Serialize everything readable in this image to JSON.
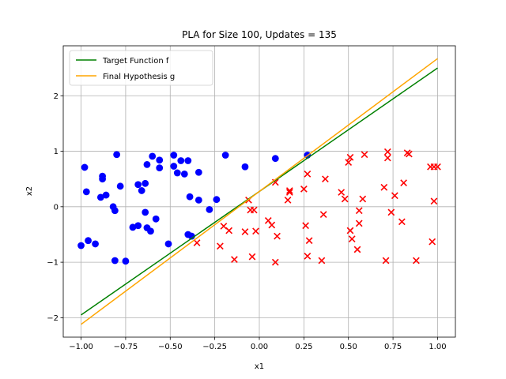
{
  "chart_data": {
    "type": "scatter",
    "title": "PLA for Size 100, Updates = 135",
    "xlabel": "x1",
    "ylabel": "x2",
    "xlim": [
      -1.1,
      1.1
    ],
    "ylim": [
      -2.35,
      2.9
    ],
    "x_ticks": [
      -1.0,
      -0.75,
      -0.5,
      -0.25,
      0.0,
      0.25,
      0.5,
      0.75,
      1.0
    ],
    "x_tick_labels": [
      "−1.00",
      "−0.75",
      "−0.50",
      "−0.25",
      "0.00",
      "0.25",
      "0.50",
      "0.75",
      "1.00"
    ],
    "y_ticks": [
      -2,
      -1,
      0,
      1,
      2
    ],
    "y_tick_labels": [
      "−2",
      "−1",
      "0",
      "1",
      "2"
    ],
    "grid": true,
    "legend_position": "upper-left",
    "lines": [
      {
        "name": "Target Function f",
        "color": "#008000",
        "x": [
          -1.0,
          1.0
        ],
        "y": [
          -1.95,
          2.5
        ]
      },
      {
        "name": "Final Hypothesis g",
        "color": "#ffa500",
        "x": [
          -1.0,
          1.0
        ],
        "y": [
          -2.12,
          2.67
        ]
      }
    ],
    "series": [
      {
        "marker": "circle",
        "color": "#0000ff",
        "points": [
          [
            -1.0,
            -0.7
          ],
          [
            -0.98,
            0.71
          ],
          [
            -0.97,
            0.27
          ],
          [
            -0.96,
            -0.61
          ],
          [
            -0.92,
            -0.67
          ],
          [
            -0.89,
            0.17
          ],
          [
            -0.88,
            0.55
          ],
          [
            -0.88,
            0.5
          ],
          [
            -0.86,
            0.21
          ],
          [
            -0.82,
            0.0
          ],
          [
            -0.81,
            -0.07
          ],
          [
            -0.81,
            -0.97
          ],
          [
            -0.8,
            0.94
          ],
          [
            -0.78,
            0.37
          ],
          [
            -0.75,
            -0.98
          ],
          [
            -0.71,
            -0.37
          ],
          [
            -0.68,
            -0.34
          ],
          [
            -0.68,
            0.4
          ],
          [
            -0.66,
            0.29
          ],
          [
            -0.64,
            0.42
          ],
          [
            -0.64,
            -0.1
          ],
          [
            -0.63,
            0.76
          ],
          [
            -0.63,
            -0.38
          ],
          [
            -0.61,
            -0.44
          ],
          [
            -0.6,
            0.91
          ],
          [
            -0.58,
            -0.22
          ],
          [
            -0.56,
            0.7
          ],
          [
            -0.56,
            0.84
          ],
          [
            -0.51,
            -0.67
          ],
          [
            -0.48,
            0.73
          ],
          [
            -0.48,
            0.93
          ],
          [
            -0.46,
            0.61
          ],
          [
            -0.44,
            0.83
          ],
          [
            -0.42,
            0.59
          ],
          [
            -0.4,
            0.83
          ],
          [
            -0.4,
            -0.5
          ],
          [
            -0.39,
            0.18
          ],
          [
            -0.38,
            -0.53
          ],
          [
            -0.34,
            0.62
          ],
          [
            -0.34,
            0.12
          ],
          [
            -0.28,
            -0.05
          ],
          [
            -0.24,
            0.13
          ],
          [
            -0.19,
            0.93
          ],
          [
            -0.08,
            0.72
          ],
          [
            0.09,
            0.87
          ],
          [
            0.27,
            0.93
          ]
        ]
      },
      {
        "marker": "x",
        "color": "#ff0000",
        "points": [
          [
            -0.35,
            -0.65
          ],
          [
            -0.22,
            -0.71
          ],
          [
            -0.2,
            -0.35
          ],
          [
            -0.17,
            -0.43
          ],
          [
            -0.14,
            -0.95
          ],
          [
            -0.08,
            -0.45
          ],
          [
            -0.06,
            0.12
          ],
          [
            -0.05,
            -0.06
          ],
          [
            -0.04,
            -0.9
          ],
          [
            -0.03,
            -0.06
          ],
          [
            -0.02,
            -0.44
          ],
          [
            0.05,
            -0.25
          ],
          [
            0.07,
            -0.33
          ],
          [
            0.09,
            0.44
          ],
          [
            0.09,
            -1.0
          ],
          [
            0.1,
            -0.53
          ],
          [
            0.16,
            0.12
          ],
          [
            0.17,
            0.29
          ],
          [
            0.17,
            0.26
          ],
          [
            0.25,
            0.32
          ],
          [
            0.26,
            -0.34
          ],
          [
            0.27,
            0.59
          ],
          [
            0.27,
            -0.89
          ],
          [
            0.28,
            -0.61
          ],
          [
            0.35,
            -0.97
          ],
          [
            0.36,
            -0.14
          ],
          [
            0.37,
            0.5
          ],
          [
            0.46,
            0.26
          ],
          [
            0.48,
            0.14
          ],
          [
            0.5,
            0.8
          ],
          [
            0.51,
            0.89
          ],
          [
            0.51,
            -0.43
          ],
          [
            0.52,
            -0.58
          ],
          [
            0.55,
            -0.77
          ],
          [
            0.56,
            -0.07
          ],
          [
            0.56,
            -0.3
          ],
          [
            0.58,
            0.14
          ],
          [
            0.59,
            0.94
          ],
          [
            0.7,
            0.35
          ],
          [
            0.71,
            -0.97
          ],
          [
            0.72,
            0.99
          ],
          [
            0.72,
            0.88
          ],
          [
            0.74,
            -0.1
          ],
          [
            0.76,
            0.2
          ],
          [
            0.8,
            -0.27
          ],
          [
            0.81,
            0.43
          ],
          [
            0.83,
            0.97
          ],
          [
            0.84,
            0.95
          ],
          [
            0.88,
            -0.97
          ],
          [
            0.96,
            0.72
          ],
          [
            0.97,
            -0.63
          ],
          [
            0.98,
            0.72
          ],
          [
            0.98,
            0.1
          ],
          [
            1.0,
            0.72
          ]
        ]
      }
    ]
  }
}
